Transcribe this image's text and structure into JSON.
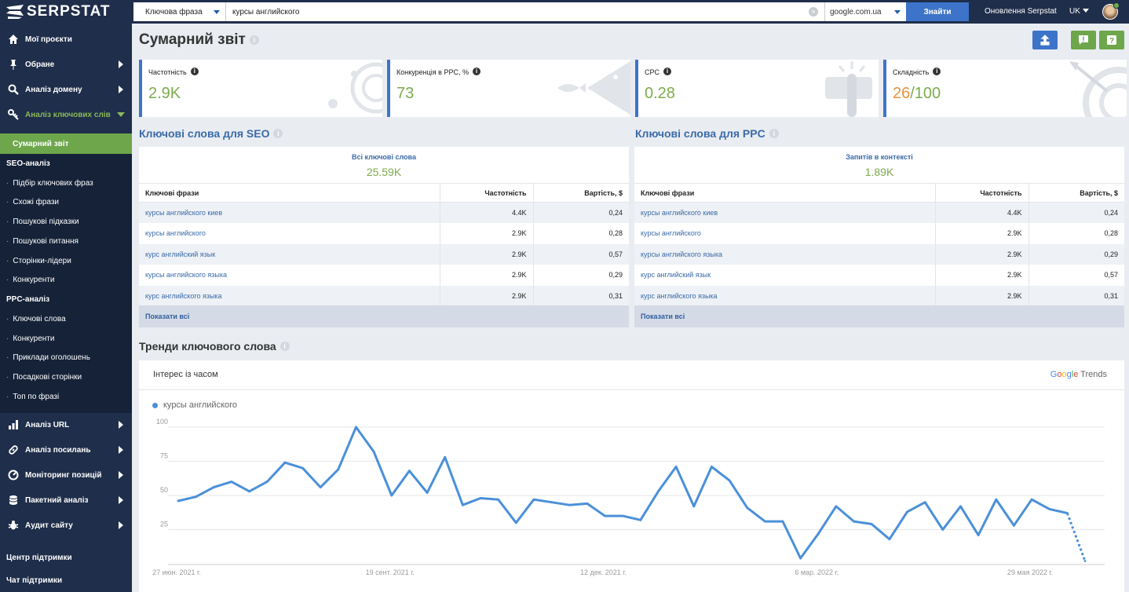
{
  "app": {
    "logo_text": "SERPSTAT",
    "search_type": "Ключова фраза",
    "query": "курсы английского",
    "domain": "google.com.ua",
    "search_button": "Знайти",
    "updates_label": "Оновлення Serpstat",
    "language": "UK"
  },
  "sidebar": {
    "items": [
      {
        "label": "Мої проєкти",
        "icon": "home-icon"
      },
      {
        "label": "Обране",
        "icon": "pin-icon"
      },
      {
        "label": "Аналіз домену",
        "icon": "search-icon"
      },
      {
        "label": "Аналіз ключових слів",
        "icon": "key-icon"
      }
    ],
    "active_sub": "Сумарний звіт",
    "seo_header": "SEO-аналіз",
    "seo_links": [
      "Підбір ключових фраз",
      "Схожі фрази",
      "Пошукові підказки",
      "Пошукові питання",
      "Сторінки-лідери",
      "Конкуренти"
    ],
    "ppc_header": "PPC-аналіз",
    "ppc_links": [
      "Ключові слова",
      "Конкуренти",
      "Приклади оголошень",
      "Посадкові сторінки",
      "Топ по фразі"
    ],
    "lower_items": [
      {
        "label": "Аналіз URL",
        "icon": "bar-chart-icon"
      },
      {
        "label": "Аналіз посилань",
        "icon": "link-icon"
      },
      {
        "label": "Моніторинг позицій",
        "icon": "gauge-icon"
      },
      {
        "label": "Пакетний аналіз",
        "icon": "database-icon"
      },
      {
        "label": "Аудит сайту",
        "icon": "bug-icon"
      }
    ],
    "support_center": "Центр підтримки",
    "support_chat": "Чат підтримки"
  },
  "page": {
    "title": "Сумарний звіт"
  },
  "cards": [
    {
      "label": "Частотність",
      "value": "2.9K",
      "icon": "orbit-icon"
    },
    {
      "label": "Конкуренція в PPC, %",
      "value": "73",
      "icon": "fish-icon"
    },
    {
      "label": "CPC",
      "value": "0.28",
      "icon": "click-icon"
    },
    {
      "label": "Складність",
      "value_main": "26",
      "value_suffix": "/100",
      "icon": "target-icon"
    }
  ],
  "seo": {
    "title": "Ключові слова для SEO",
    "summary_label": "Всі ключові слова",
    "summary_value": "25.59K",
    "columns": [
      "Ключові фрази",
      "Частотність",
      "Вартість, $"
    ],
    "rows": [
      [
        "курсы английского киев",
        "4.4K",
        "0,24"
      ],
      [
        "курсы английского",
        "2.9K",
        "0,28"
      ],
      [
        "курс английский язык",
        "2.9K",
        "0,57"
      ],
      [
        "курсы английского языка",
        "2.9K",
        "0,29"
      ],
      [
        "курс английского языка",
        "2.9K",
        "0,31"
      ]
    ],
    "show_all": "Показати всі"
  },
  "ppc": {
    "title": "Ключові слова для PPC",
    "summary_label": "Запитів в контексті",
    "summary_value": "1.89K",
    "columns": [
      "Ключові фрази",
      "Частотність",
      "Вартість, $"
    ],
    "rows": [
      [
        "курсы английского киев",
        "4.4K",
        "0,24"
      ],
      [
        "курсы английского",
        "2.9K",
        "0,28"
      ],
      [
        "курсы английского языка",
        "2.9K",
        "0,29"
      ],
      [
        "курс английский язык",
        "2.9K",
        "0,57"
      ],
      [
        "курс английского языка",
        "2.9K",
        "0,31"
      ]
    ],
    "show_all": "Показати всі"
  },
  "trends": {
    "title": "Тренди ключового слова",
    "header": "Інтерес із часом",
    "brand": "Google Trends",
    "colors": {
      "line": "#4a90d9",
      "accent": "#6ea64b",
      "primary": "#3d74c9"
    }
  },
  "chart_data": {
    "type": "line",
    "xlabel": "",
    "ylabel": "",
    "ylim": [
      0,
      100
    ],
    "yticks": [
      25,
      50,
      75,
      100
    ],
    "xtick_labels": [
      "27 июн. 2021 г.",
      "19 сент. 2021 г.",
      "12 дек. 2021 г.",
      "6 мар. 2022 г.",
      "29 мая 2022 г."
    ],
    "xtick_index": [
      0,
      12,
      24,
      36,
      48
    ],
    "series": [
      {
        "name": "курсы английского",
        "values": [
          46,
          49,
          56,
          60,
          53,
          60,
          74,
          70,
          56,
          69,
          100,
          82,
          50,
          68,
          52,
          78,
          43,
          48,
          47,
          30,
          47,
          45,
          43,
          44,
          35,
          35,
          32,
          53,
          71,
          42,
          71,
          61,
          41,
          31,
          31,
          4,
          22,
          42,
          31,
          29,
          18,
          38,
          45,
          25,
          42,
          21,
          47,
          28,
          47,
          40,
          37,
          2
        ],
        "partial_from_index": 50
      }
    ]
  }
}
